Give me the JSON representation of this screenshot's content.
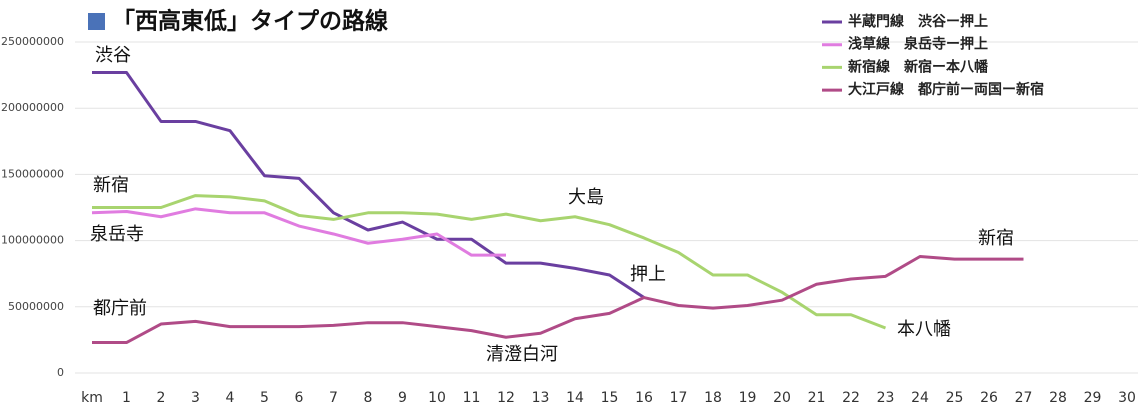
{
  "chart_data": {
    "type": "line",
    "title": "「西高東低」タイプの路線",
    "xlim": [
      0,
      30
    ],
    "xticks": [
      {
        "value": 0,
        "label": "km"
      },
      1,
      2,
      3,
      4,
      5,
      6,
      7,
      8,
      9,
      10,
      11,
      12,
      13,
      14,
      15,
      16,
      17,
      18,
      19,
      20,
      21,
      22,
      23,
      24,
      25,
      26,
      27,
      28,
      29,
      30
    ],
    "ylim": [
      0,
      250000000
    ],
    "yticks": [
      0,
      50000000,
      100000000,
      150000000,
      200000000,
      250000000
    ],
    "grid": true,
    "legend": "upper right",
    "series": [
      {
        "name": "半蔵門線　渋谷ー押上",
        "color": "#6a3fa0",
        "x": [
          0,
          1,
          2,
          3,
          4,
          5,
          6,
          7,
          8,
          9,
          10,
          11,
          12,
          13,
          14,
          15,
          16
        ],
        "values": [
          227000000,
          227000000,
          190000000,
          190000000,
          183000000,
          149000000,
          147000000,
          121000000,
          108000000,
          114000000,
          101000000,
          101000000,
          83000000,
          83000000,
          79000000,
          74000000,
          57000000
        ]
      },
      {
        "name": "浅草線　泉岳寺ー押上",
        "color": "#e07ce0",
        "x": [
          0,
          1,
          2,
          3,
          4,
          5,
          6,
          7,
          8,
          9,
          10,
          11,
          12
        ],
        "values": [
          121000000,
          122000000,
          118000000,
          124000000,
          121000000,
          121000000,
          111000000,
          105000000,
          98000000,
          101000000,
          105000000,
          89000000,
          89000000
        ]
      },
      {
        "name": "新宿線　新宿ー本八幡",
        "color": "#a8d46f",
        "x": [
          0,
          1,
          2,
          3,
          4,
          5,
          6,
          7,
          8,
          9,
          10,
          11,
          12,
          13,
          14,
          15,
          16,
          17,
          18,
          19,
          20,
          21,
          22,
          23
        ],
        "values": [
          125000000,
          125000000,
          125000000,
          134000000,
          133000000,
          130000000,
          119000000,
          116000000,
          121000000,
          121000000,
          120000000,
          116000000,
          120000000,
          115000000,
          118000000,
          112000000,
          102000000,
          91000000,
          74000000,
          74000000,
          61000000,
          44000000,
          44000000,
          34000000
        ]
      },
      {
        "name": "大江戸線　都庁前ー両国ー新宿",
        "color": "#b04b87",
        "x": [
          0,
          1,
          2,
          3,
          4,
          5,
          6,
          7,
          8,
          9,
          10,
          11,
          12,
          13,
          14,
          15,
          16,
          17,
          18,
          19,
          20,
          21,
          22,
          23,
          24,
          25,
          26,
          27
        ],
        "values": [
          23000000,
          23000000,
          37000000,
          39000000,
          35000000,
          35000000,
          35000000,
          36000000,
          38000000,
          38000000,
          35000000,
          32000000,
          27000000,
          30000000,
          41000000,
          45000000,
          57000000,
          51000000,
          49000000,
          51000000,
          55000000,
          67000000,
          71000000,
          73000000,
          88000000,
          86000000,
          86000000,
          86000000
        ]
      }
    ],
    "annotations": [
      "渋谷",
      "新宿",
      "泉岳寺",
      "都庁前",
      "大島",
      "押上",
      "清澄白河",
      "新宿",
      "本八幡"
    ]
  }
}
